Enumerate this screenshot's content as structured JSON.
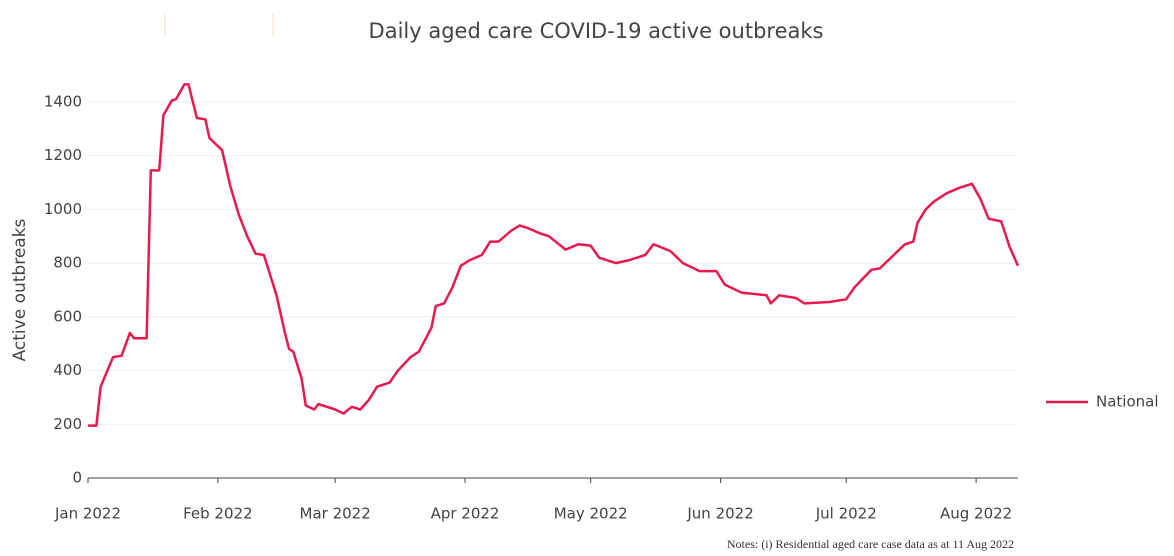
{
  "chart_data": {
    "type": "line",
    "title": "Daily aged care COVID-19 active outbreaks",
    "y_label": "Active outbreaks",
    "note": "Notes: (i) Residential aged care case data as at 11 Aug 2022",
    "x": [
      "2022-01-01",
      "2022-01-03",
      "2022-01-04",
      "2022-01-07",
      "2022-01-09",
      "2022-01-11",
      "2022-01-12",
      "2022-01-15",
      "2022-01-16",
      "2022-01-18",
      "2022-01-19",
      "2022-01-21",
      "2022-01-22",
      "2022-01-24",
      "2022-01-25",
      "2022-01-27",
      "2022-01-29",
      "2022-01-30",
      "2022-02-02",
      "2022-02-04",
      "2022-02-06",
      "2022-02-08",
      "2022-02-10",
      "2022-02-12",
      "2022-02-15",
      "2022-02-17",
      "2022-02-18",
      "2022-02-19",
      "2022-02-21",
      "2022-02-22",
      "2022-02-24",
      "2022-02-25",
      "2022-03-01",
      "2022-03-03",
      "2022-03-05",
      "2022-03-07",
      "2022-03-09",
      "2022-03-11",
      "2022-03-14",
      "2022-03-16",
      "2022-03-19",
      "2022-03-21",
      "2022-03-24",
      "2022-03-25",
      "2022-03-27",
      "2022-03-29",
      "2022-03-31",
      "2022-04-02",
      "2022-04-05",
      "2022-04-07",
      "2022-04-09",
      "2022-04-12",
      "2022-04-14",
      "2022-04-16",
      "2022-04-19",
      "2022-04-21",
      "2022-04-25",
      "2022-04-28",
      "2022-05-01",
      "2022-05-03",
      "2022-05-07",
      "2022-05-10",
      "2022-05-14",
      "2022-05-16",
      "2022-05-20",
      "2022-05-23",
      "2022-05-27",
      "2022-05-31",
      "2022-06-02",
      "2022-06-06",
      "2022-06-12",
      "2022-06-13",
      "2022-06-15",
      "2022-06-19",
      "2022-06-21",
      "2022-06-27",
      "2022-07-01",
      "2022-07-03",
      "2022-07-07",
      "2022-07-09",
      "2022-07-13",
      "2022-07-15",
      "2022-07-17",
      "2022-07-18",
      "2022-07-20",
      "2022-07-22",
      "2022-07-25",
      "2022-07-28",
      "2022-07-31",
      "2022-08-02",
      "2022-08-04",
      "2022-08-07",
      "2022-08-09",
      "2022-08-11"
    ],
    "series": [
      {
        "name": "National",
        "color": "#e8194f",
        "values": [
          195,
          195,
          340,
          450,
          455,
          540,
          520,
          520,
          1145,
          1145,
          1350,
          1405,
          1410,
          1465,
          1465,
          1340,
          1335,
          1265,
          1220,
          1085,
          980,
          900,
          835,
          830,
          680,
          540,
          480,
          470,
          370,
          270,
          255,
          275,
          255,
          240,
          265,
          255,
          290,
          340,
          355,
          400,
          450,
          470,
          560,
          640,
          650,
          710,
          790,
          810,
          830,
          880,
          880,
          920,
          940,
          930,
          910,
          900,
          850,
          870,
          865,
          820,
          800,
          810,
          830,
          870,
          845,
          800,
          770,
          770,
          720,
          690,
          680,
          650,
          680,
          670,
          650,
          655,
          665,
          710,
          775,
          780,
          840,
          870,
          880,
          950,
          1000,
          1030,
          1060,
          1080,
          1095,
          1040,
          965,
          955,
          860,
          790
        ]
      }
    ],
    "xlim": [
      "2022-01-01",
      "2022-08-11"
    ],
    "xticks": [
      {
        "value": "2022-01-01",
        "label": "Jan 2022"
      },
      {
        "value": "2022-02-01",
        "label": "Feb 2022"
      },
      {
        "value": "2022-03-01",
        "label": "Mar 2022"
      },
      {
        "value": "2022-04-01",
        "label": "Apr 2022"
      },
      {
        "value": "2022-05-01",
        "label": "May 2022"
      },
      {
        "value": "2022-06-01",
        "label": "Jun 2022"
      },
      {
        "value": "2022-07-01",
        "label": "Jul 2022"
      },
      {
        "value": "2022-08-01",
        "label": "Aug 2022"
      }
    ],
    "ylim": [
      0,
      1500
    ],
    "yticks": [
      0,
      200,
      400,
      600,
      800,
      1000,
      1200,
      1400
    ],
    "grid": true,
    "legend": "right"
  }
}
